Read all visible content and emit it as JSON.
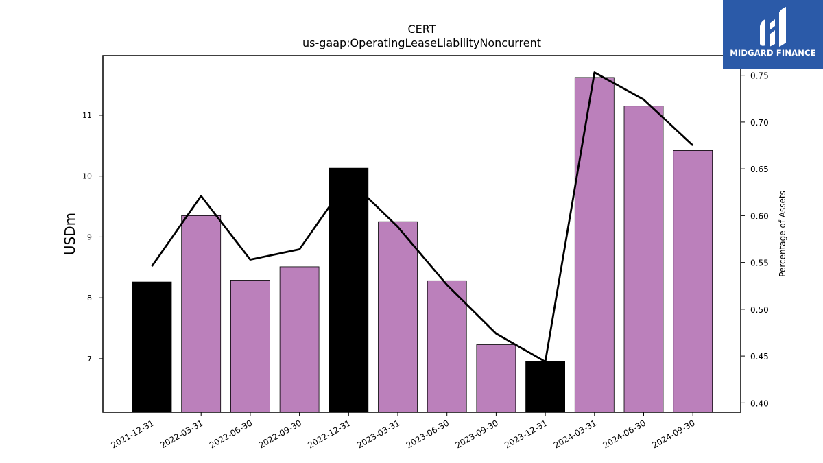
{
  "chart_data": {
    "type": "bar",
    "title": "CERT",
    "subtitle": "us-gaap:OperatingLeaseLiabilityNoncurrent",
    "ylabel": "USDm",
    "y2label": "Percentage of Assets",
    "ylim": [
      6.12,
      11.98
    ],
    "y2lim": [
      0.39,
      0.771
    ],
    "yticks": [
      7,
      8,
      9,
      10,
      11
    ],
    "y2ticks": [
      0.4,
      0.45,
      0.5,
      0.55,
      0.6,
      0.65,
      0.7,
      0.75
    ],
    "categories": [
      "2021-12-31",
      "2022-03-31",
      "2022-06-30",
      "2022-09-30",
      "2022-12-31",
      "2023-03-31",
      "2023-06-30",
      "2023-09-30",
      "2023-12-31",
      "2024-03-31",
      "2024-06-30",
      "2024-09-30"
    ],
    "series": [
      {
        "kind": "bar",
        "axis": "left",
        "values": [
          8.26,
          9.35,
          8.29,
          8.51,
          10.13,
          9.25,
          8.28,
          7.23,
          6.95,
          11.62,
          11.15,
          10.42
        ],
        "colors": [
          "#000000",
          "#bb80bb",
          "#bb80bb",
          "#bb80bb",
          "#000000",
          "#bb80bb",
          "#bb80bb",
          "#bb80bb",
          "#000000",
          "#bb80bb",
          "#bb80bb",
          "#bb80bb"
        ]
      },
      {
        "kind": "line",
        "axis": "right",
        "color": "#000000",
        "values": [
          0.546,
          0.621,
          0.553,
          0.564,
          0.639,
          0.588,
          0.526,
          0.474,
          0.444,
          0.753,
          0.724,
          0.675
        ]
      }
    ],
    "grid": false,
    "legend": "none"
  },
  "logo": {
    "text": "MIDGARD FINANCE",
    "background": "#2b5aa8"
  }
}
